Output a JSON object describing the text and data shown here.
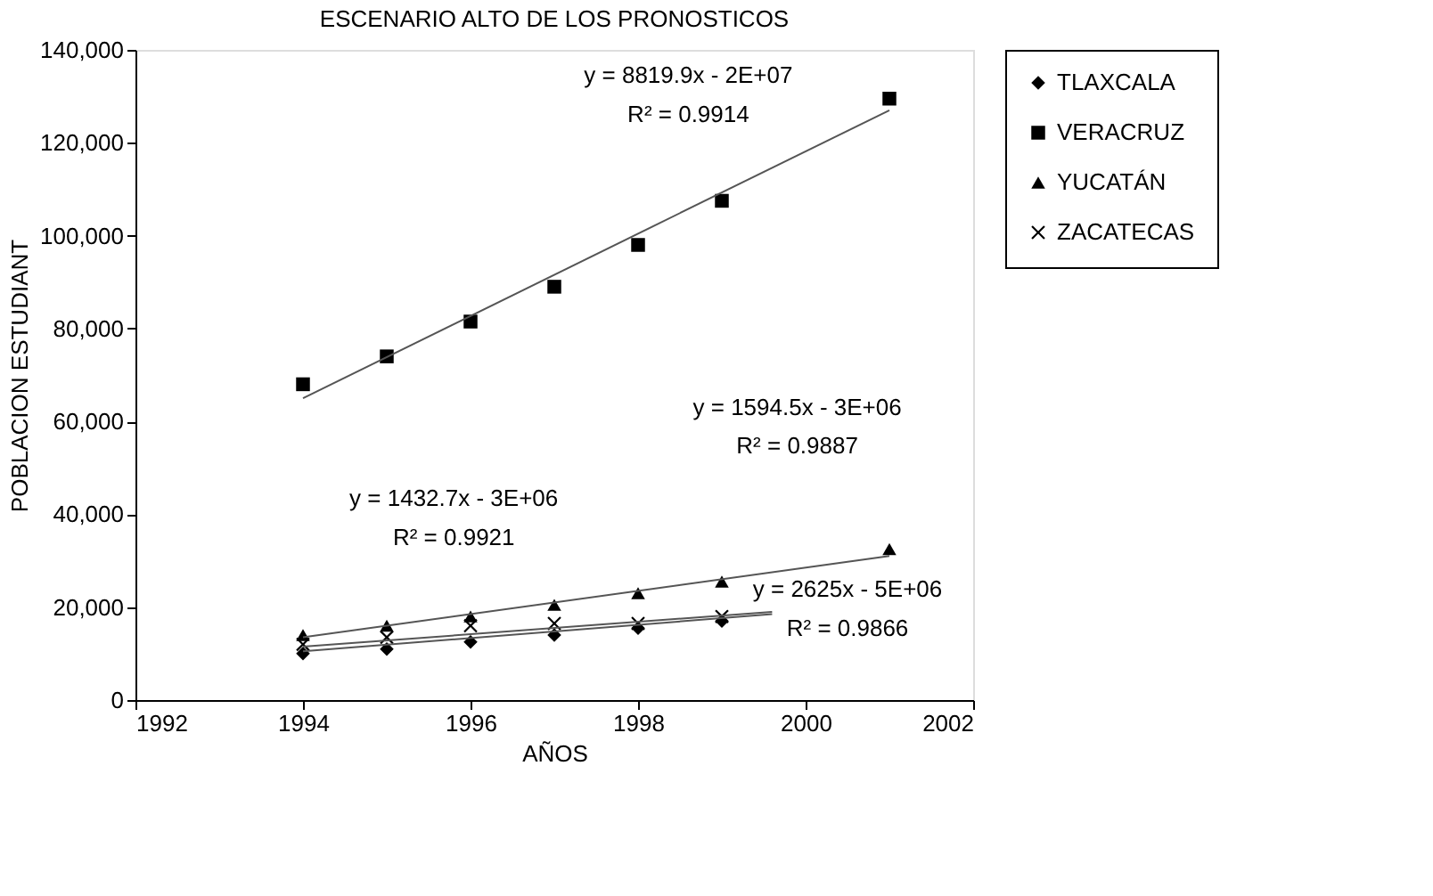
{
  "chart_data": {
    "type": "scatter",
    "title": "ESCENARIO ALTO DE LOS PRONOSTICOS",
    "xlabel": "AÑOS",
    "ylabel": "POBLACION ESTUDIANT",
    "xlim": [
      1992,
      2002
    ],
    "xticks": [
      1992,
      1994,
      1996,
      1998,
      2000,
      2002
    ],
    "ylim": [
      0,
      140000
    ],
    "yticks": [
      {
        "value": 0,
        "label": "0"
      },
      {
        "value": 20000,
        "label": "20,000"
      },
      {
        "value": 40000,
        "label": "40,000"
      },
      {
        "value": 60000,
        "label": "60,000"
      },
      {
        "value": 80000,
        "label": "80,000"
      },
      {
        "value": 100000,
        "label": "100,000"
      },
      {
        "value": 120000,
        "label": "120,000"
      },
      {
        "value": 140000,
        "label": "140,000"
      }
    ],
    "grid": false,
    "legend": "right",
    "series": [
      {
        "name": "TLAXCALA",
        "color": "#000000",
        "marker": "diamond",
        "x": [
          1994,
          1995,
          1996,
          1997,
          1998,
          1999
        ],
        "values": [
          10000,
          11000,
          12500,
          14000,
          15500,
          17000
        ]
      },
      {
        "name": "VERACRUZ",
        "color": "#000000",
        "marker": "square",
        "x": [
          1994,
          1995,
          1996,
          1997,
          1998,
          1999,
          2001
        ],
        "values": [
          68000,
          74000,
          81500,
          89000,
          98000,
          107500,
          129500
        ]
      },
      {
        "name": "YUCATÁN",
        "color": "#000000",
        "marker": "triangle",
        "x": [
          1994,
          1995,
          1996,
          1997,
          1998,
          1999,
          2001
        ],
        "values": [
          14000,
          16000,
          18000,
          20500,
          23000,
          25500,
          32500
        ]
      },
      {
        "name": "ZACATECAS",
        "color": "#000000",
        "marker": "cross",
        "x": [
          1994,
          1995,
          1996,
          1997,
          1998,
          1999
        ],
        "values": [
          12000,
          13500,
          16000,
          16500,
          16500,
          18000
        ]
      },
      {
        "type": "line",
        "color": "#555555",
        "x": [
          1994,
          1999.6
        ],
        "values": [
          10500,
          18500
        ]
      },
      {
        "type": "line",
        "color": "#555555",
        "x": [
          1994,
          2001
        ],
        "values": [
          65000,
          127000
        ]
      },
      {
        "type": "line",
        "color": "#555555",
        "x": [
          1994,
          2001
        ],
        "values": [
          13500,
          31000
        ]
      },
      {
        "type": "line",
        "color": "#555555",
        "x": [
          1994,
          1999.6
        ],
        "values": [
          11500,
          19000
        ]
      }
    ],
    "annotations": [
      "y = 8819.9x - 2E+07",
      "R² = 0.9914",
      "y = 1594.5x - 3E+06",
      "R² = 0.9887",
      "y = 1432.7x - 3E+06",
      "R² = 0.9921",
      "y = 2625x - 5E+06",
      "R² = 0.9866"
    ]
  }
}
